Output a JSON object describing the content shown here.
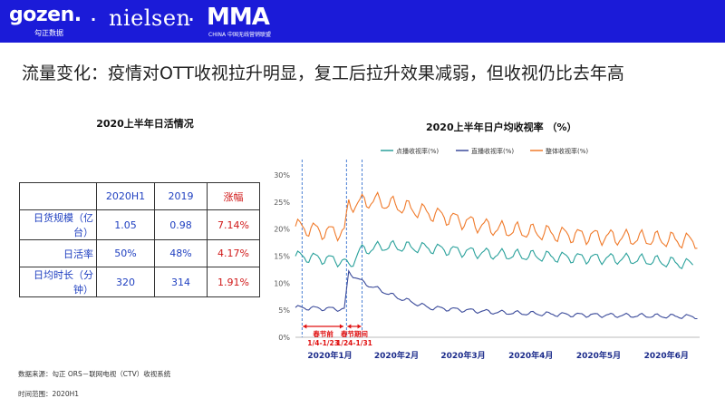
{
  "header": {
    "logo_gozen": "gozen.",
    "logo_gozen_sub": "勾正数据",
    "separator": "·",
    "logo_nielsen": "nielsen",
    "logo_mma": "MMA",
    "logo_mma_sub": "CHINA 中国无线营销联盟",
    "bg_color": "#1b1bd8"
  },
  "headline": "流量变化：疫情对OTT收视拉升明显，复工后拉升效果减弱，但收视仍比去年高",
  "table": {
    "title": "2020上半年日活情况",
    "headers": [
      "",
      "2020H1",
      "2019",
      "涨幅"
    ],
    "rows": [
      [
        "日货规模（亿台）",
        "1.05",
        "0.98",
        "7.14%"
      ],
      [
        "日活率",
        "50%",
        "48%",
        "4.17%"
      ],
      [
        "日均时长（分钟）",
        "320",
        "314",
        "1.91%"
      ]
    ]
  },
  "chart_data": {
    "type": "line",
    "title": "2020上半年日户均收视率 （%）",
    "xlabel": "",
    "ylabel": "",
    "ylim": [
      0,
      30
    ],
    "yticks": [
      "0%",
      "5%",
      "10%",
      "15%",
      "20%",
      "25%",
      "30%"
    ],
    "xtick_labels": [
      "2020年1月",
      "2020年2月",
      "2020年3月",
      "2020年4月",
      "2020年5月",
      "2020年6月"
    ],
    "legend_position": "top",
    "series": [
      {
        "name": "点播收视率(%)",
        "color": "#2aa19b",
        "keypoints": [
          {
            "x": "2020-01-01",
            "y": 15.0
          },
          {
            "x": "2020-01-15",
            "y": 14.5
          },
          {
            "x": "2020-01-23",
            "y": 14.0
          },
          {
            "x": "2020-01-25",
            "y": 13.0
          },
          {
            "x": "2020-01-30",
            "y": 16.0
          },
          {
            "x": "2020-02-10",
            "y": 16.8
          },
          {
            "x": "2020-03-01",
            "y": 16.5
          },
          {
            "x": "2020-04-01",
            "y": 15.3
          },
          {
            "x": "2020-05-01",
            "y": 14.8
          },
          {
            "x": "2020-06-01",
            "y": 14.4
          },
          {
            "x": "2020-06-28",
            "y": 13.5
          }
        ]
      },
      {
        "name": "直播收视率(%)",
        "color": "#3a4a9a",
        "keypoints": [
          {
            "x": "2020-01-01",
            "y": 5.5
          },
          {
            "x": "2020-01-23",
            "y": 5.2
          },
          {
            "x": "2020-01-25",
            "y": 12.0
          },
          {
            "x": "2020-02-01",
            "y": 10.0
          },
          {
            "x": "2020-02-15",
            "y": 7.5
          },
          {
            "x": "2020-03-01",
            "y": 5.5
          },
          {
            "x": "2020-04-01",
            "y": 4.6
          },
          {
            "x": "2020-05-01",
            "y": 4.2
          },
          {
            "x": "2020-06-01",
            "y": 4.0
          },
          {
            "x": "2020-06-30",
            "y": 3.8
          }
        ]
      },
      {
        "name": "整体收视率(%)",
        "color": "#f07a2a",
        "keypoints": [
          {
            "x": "2020-01-01",
            "y": 20.5
          },
          {
            "x": "2020-01-15",
            "y": 19.5
          },
          {
            "x": "2020-01-23",
            "y": 19.5
          },
          {
            "x": "2020-01-25",
            "y": 24.5
          },
          {
            "x": "2020-02-05",
            "y": 25.3
          },
          {
            "x": "2020-03-01",
            "y": 23.0
          },
          {
            "x": "2020-04-01",
            "y": 20.0
          },
          {
            "x": "2020-05-01",
            "y": 19.0
          },
          {
            "x": "2020-06-01",
            "y": 18.3
          },
          {
            "x": "2020-06-30",
            "y": 17.8
          }
        ]
      }
    ],
    "annotations": [
      {
        "label": "春节前",
        "range": "1/4-1/23",
        "start": "2020-01-04",
        "end": "2020-01-23",
        "color": "#e01010"
      },
      {
        "label": "春节期间",
        "range": "1/24-1/31",
        "start": "2020-01-24",
        "end": "2020-01-31",
        "color": "#e01010"
      }
    ]
  },
  "footer": {
    "source": "数据来源：勾正 ORS－联网电视（CTV）收视系统",
    "period": "时间范围：2020H1"
  }
}
